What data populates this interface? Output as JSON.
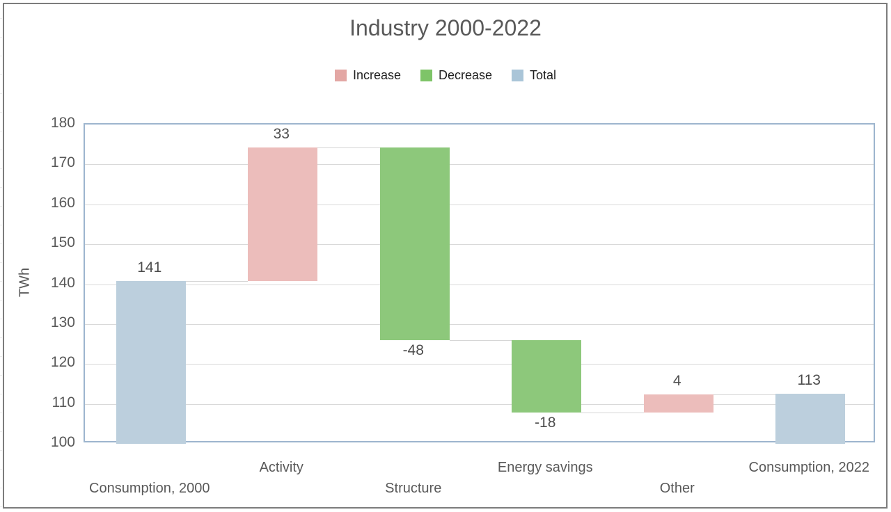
{
  "window": {
    "background": "#ffffff",
    "frame_border_color": "#7c7c7c"
  },
  "chart_data": {
    "type": "bar",
    "subtype": "waterfall",
    "title": "Industry 2000-2022",
    "xlabel": "",
    "ylabel": "TWh",
    "ylim": [
      100,
      180
    ],
    "ytick_step": 10,
    "ytick_labels": [
      "100",
      "110",
      "120",
      "130",
      "140",
      "150",
      "160",
      "170",
      "180"
    ],
    "grid": true,
    "gridline_color": "#d9d9d9",
    "plot_border_color": "#9db5ce",
    "connector_color": "#d6d6d6",
    "axis_text_color": "#595959",
    "value_label_color": "#4d4d4d",
    "legend_position": "top-center",
    "legend": [
      {
        "label": "Increase",
        "color": "#e3a7a4"
      },
      {
        "label": "Decrease",
        "color": "#7ec468"
      },
      {
        "label": "Total",
        "color": "#aac5d8"
      }
    ],
    "bar_colors": {
      "increase": "#ecbdbb",
      "decrease": "#8dc87b",
      "total": "#bccfdd"
    },
    "categories": [
      "Consumption, 2000",
      "Activity",
      "Structure",
      "Energy savings",
      "Other",
      "Consumption, 2022"
    ],
    "bars": [
      {
        "category": "Consumption, 2000",
        "value": 141,
        "label": "141",
        "kind": "total",
        "start": 100,
        "end": 140.8,
        "category_row": "lower"
      },
      {
        "category": "Activity",
        "value": 33,
        "label": "33",
        "kind": "increase",
        "start": 140.8,
        "end": 174.2,
        "category_row": "upper"
      },
      {
        "category": "Structure",
        "value": -48,
        "label": "-48",
        "kind": "decrease",
        "start": 174.2,
        "end": 126.0,
        "category_row": "lower"
      },
      {
        "category": "Energy savings",
        "value": -18,
        "label": "-18",
        "kind": "decrease",
        "start": 126.0,
        "end": 107.9,
        "category_row": "upper"
      },
      {
        "category": "Other",
        "value": 4,
        "label": "4",
        "kind": "increase",
        "start": 107.9,
        "end": 112.4,
        "category_row": "lower"
      },
      {
        "category": "Consumption, 2022",
        "value": 113,
        "label": "113",
        "kind": "total",
        "start": 100,
        "end": 112.6,
        "category_row": "upper"
      }
    ]
  }
}
